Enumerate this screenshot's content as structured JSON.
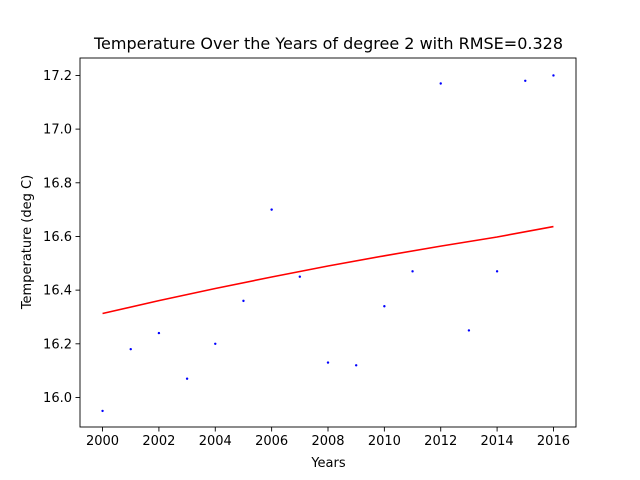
{
  "chart_data": {
    "type": "scatter",
    "title": "Temperature Over the Years of degree 2 with RMSE=0.328",
    "xlabel": "Years",
    "ylabel": "Temperature (deg C)",
    "xlim": [
      1999.2,
      2016.8
    ],
    "ylim": [
      15.89,
      17.265
    ],
    "x_ticks": [
      2000,
      2002,
      2004,
      2006,
      2008,
      2010,
      2012,
      2014,
      2016
    ],
    "y_ticks": [
      16.0,
      16.2,
      16.4,
      16.6,
      16.8,
      17.0,
      17.2
    ],
    "grid": false,
    "series": [
      {
        "type": "scatter",
        "color": "#0000ff",
        "x": [
          2000,
          2001,
          2002,
          2003,
          2004,
          2005,
          2006,
          2007,
          2008,
          2009,
          2010,
          2011,
          2012,
          2013,
          2014,
          2015,
          2016
        ],
        "y": [
          15.95,
          16.18,
          16.24,
          16.07,
          16.2,
          16.36,
          16.7,
          16.45,
          16.13,
          16.12,
          16.34,
          16.47,
          17.17,
          16.25,
          16.47,
          17.18,
          17.2
        ]
      },
      {
        "type": "line",
        "color": "#ff0000",
        "x": [
          2000,
          2002,
          2004,
          2006,
          2008,
          2010,
          2012,
          2014,
          2016
        ],
        "y": [
          16.313,
          16.361,
          16.406,
          16.449,
          16.49,
          16.528,
          16.564,
          16.598,
          16.637
        ]
      }
    ]
  }
}
